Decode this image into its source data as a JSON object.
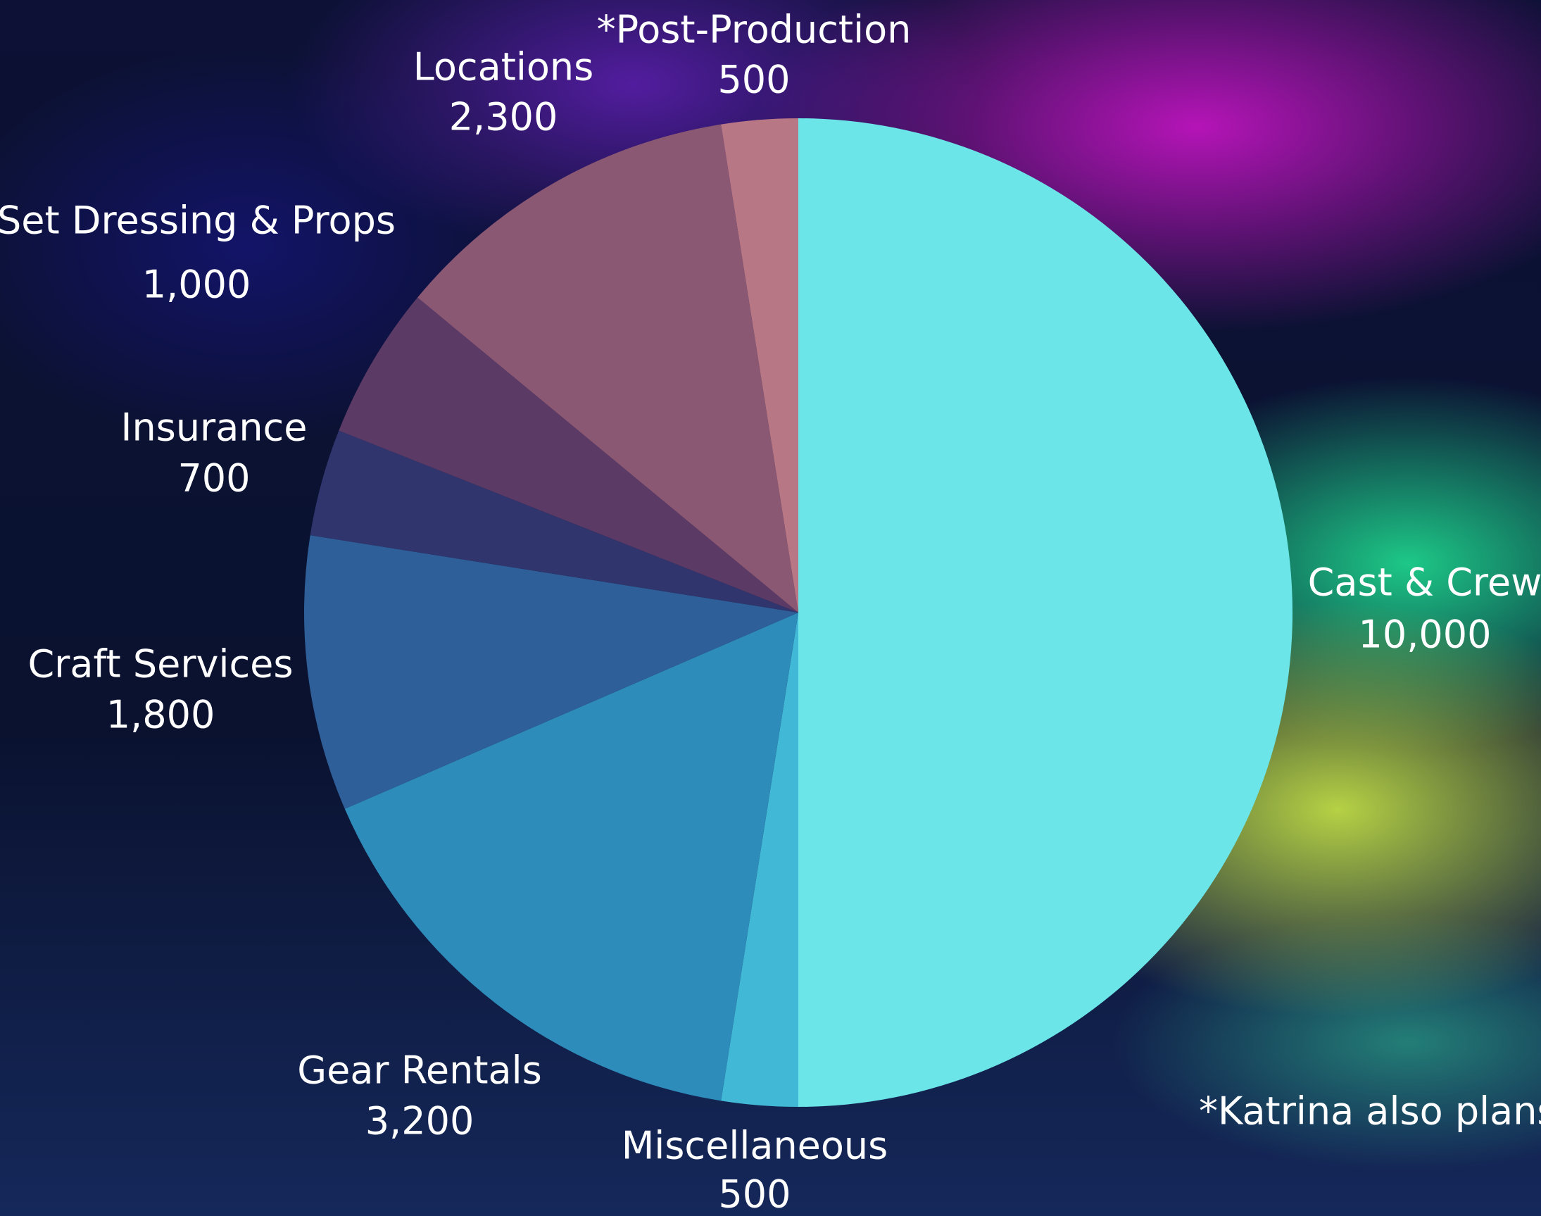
{
  "chart_data": {
    "type": "pie",
    "categories": [
      "Cast & Crew",
      "Miscellaneous",
      "Gear Rentals",
      "Craft Services",
      "Insurance",
      "Set Dressing & Props",
      "Locations",
      "*Post-Production"
    ],
    "values": [
      10000,
      500,
      3200,
      1800,
      700,
      1000,
      2300,
      500
    ],
    "value_labels": [
      "10,000",
      "500",
      "3,200",
      "1,800",
      "700",
      "1,000",
      "2,300",
      "500"
    ],
    "colors": [
      "#6ce5e8",
      "#41b8d5",
      "#2e8cba",
      "#2e5f98",
      "#31356e",
      "#5c3a66",
      "#8b5874",
      "#b87784"
    ],
    "annotation": "*Katrina also plans t"
  }
}
